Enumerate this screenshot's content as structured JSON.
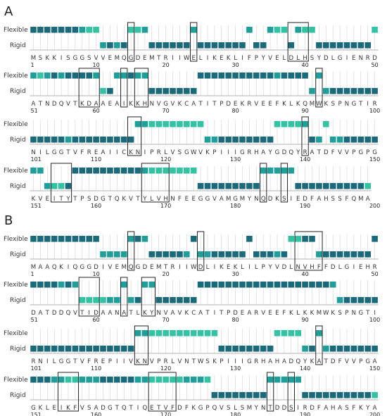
{
  "figure": {
    "state_labels": {
      "flexible": "Flexible",
      "rigid": "Rigid"
    },
    "colors": {
      "dark": "#1b6a7b",
      "mid": "#1f9e9a",
      "light": "#33c3a4",
      "grid": "#c8c8c8",
      "box": "#222222"
    }
  },
  "panels": [
    {
      "label": "A",
      "rows": [
        {
          "start": 1,
          "ticks": [
            "1",
            "10",
            "20",
            "30",
            "40",
            "50"
          ],
          "sequence": "MSKKISGGSVVEMQGDEMTRIIWELIKEKLIFPYVELDLHSYDLGIENRD",
          "states": "FFFFFFFFFFRRRRFFFRRRRRRFRRRRRRRFRRFFFRFFFRRRRRRRRF",
          "shades": "DDDDDDDMLLMDMDLLMDDDDDDMDDDDDDDMDDMLLDMLLDDDDDDDDL",
          "boxes": [
            15,
            24,
            38,
            39,
            40
          ]
        },
        {
          "start": 51,
          "ticks": [
            "51",
            "60",
            "70",
            "80",
            "90",
            "100"
          ],
          "sequence": "ATNDQVTKDAAEAIKKHNVGVKCATITPDEKRVEEFKLKQMWKSPNGTIR",
          "states": "FFFFFFFFFFRRFFFFFRRRRRRRFFFFFFFFFFFFFFFFRFRRRRRRRR",
          "shades": "MLMDMDDDDMLDMMDMMDDDDDDDDDDDDDDDDDDMDDDDMMMDDDDDDD",
          "boxes": [
            58,
            59,
            60,
            64,
            66,
            67,
            92
          ]
        },
        {
          "start": 101,
          "ticks": [
            "101",
            "110",
            "120",
            "130",
            "140",
            "150"
          ],
          "sequence": "NILGGTVFREAIICKNIPRLVSGWVKPIIIGRHAYGDQYRATDFVVPGPG",
          "states": "RRRRRRRRRRRRRRRFFFFFFFFFFRRRRRRRRRRFFFFFRRFRRRRRRR",
          "shades": "DDDDDMDDDDDDDDDMMLLLLLLLLMMDDDDDDDDLLLLMDMLMMDDDDD",
          "boxes": [
            115,
            116,
            140
          ]
        },
        {
          "start": 151,
          "ticks": [
            "151",
            "160",
            "170",
            "180",
            "190",
            "200"
          ],
          "sequence": "KVEITYTPSDGTQKVTYLVHNFEEGGVAMGMYNQDKSIEDFAHSSFQMA",
          "states": "FFRRRRFFFFFFFFFFFFFFFFFFRRRRRRRRRFFFFFRRRRRRRRRRR",
          "shades": "MMMLLDDDDDDDDDDDMLLLLLLLDDDDDDDDDMMMMMDDDDDDDDDDL",
          "boxes": [
            154,
            155,
            156,
            167,
            168,
            169,
            170,
            184,
            187
          ]
        }
      ]
    },
    {
      "label": "B",
      "rows": [
        {
          "start": 1,
          "ticks": [
            "1",
            "10",
            "20",
            "30",
            "40",
            "50"
          ],
          "sequence": "MAAQKIQGGDIVEMQGDEMTRIIWDLIKEKLILPYVDLNVHFFDLGIEHR",
          "states": "FFFFFFFFFFRRRRFFFRRRRRRFRRRRRRRFRRRRRFFFFRRRRRRRRF",
          "shades": "DDDDDDDDDDMMMMMDMDDDDDMDMMDDDDDDDDDMDLLDDMDDDDDDDD",
          "boxes": [
            15,
            25,
            39,
            40,
            41,
            42
          ]
        },
        {
          "start": 51,
          "ticks": [
            "51",
            "60",
            "70",
            "80",
            "90",
            "100"
          ],
          "sequence": "DATDDQVTIDAANATLKYNVAVKCATITPDEARVEEFKLKKMWKSPNGTI",
          "states": "FFFFFFFRRRRRRFRRFFRRRRRRFFFFFFFFFFFFFFFFFFFFRRRRRR",
          "shades": "DDDDMDMLLLLMMMMDMMDDDDDDDDDDDDDDDDDDDDDDDDDMMDDDDD",
          "boxes": [
            58,
            59,
            60,
            64,
            67,
            68
          ]
        },
        {
          "start": 101,
          "ticks": [
            "101",
            "110",
            "120",
            "130",
            "140",
            "150"
          ],
          "sequence": "RNILGGTVFREPIIVKNVPRLVNTWSKPIIIGRHAHADQYKATDFVVPGA",
          "states": "RRRRRRRRRRRRRRRFFFFFFFFFFFFRRRRRRRRFFFFRRFRRRRRRRR",
          "shades": "DDDDDDDDDDDDDDDMMLLLLLLLLLLDDDDDDDDLLLLMDMMDDDDDDD",
          "boxes": [
            116,
            117,
            142
          ]
        },
        {
          "start": 151,
          "ticks": [
            "151",
            "160",
            "170",
            "180",
            "190",
            "200"
          ],
          "sequence": "GKLEIKFVSADGTQTIQETVFDFKGPQVSLSMYNTDDSIRDFAHASFKYA",
          "states": "FFFFFFFFFFFFFFFFFFFFFFFFFFRRRRRRRRFFFFFRRRRRRRRRRR",
          "shades": "DDDMMLLMMMDDDDDMMLLLLLMMMLDDDDDDDDMMMMMDDDDDDDDDDL",
          "boxes": [
            155,
            156,
            157,
            168,
            169,
            170,
            171,
            185,
            188
          ]
        }
      ]
    }
  ]
}
